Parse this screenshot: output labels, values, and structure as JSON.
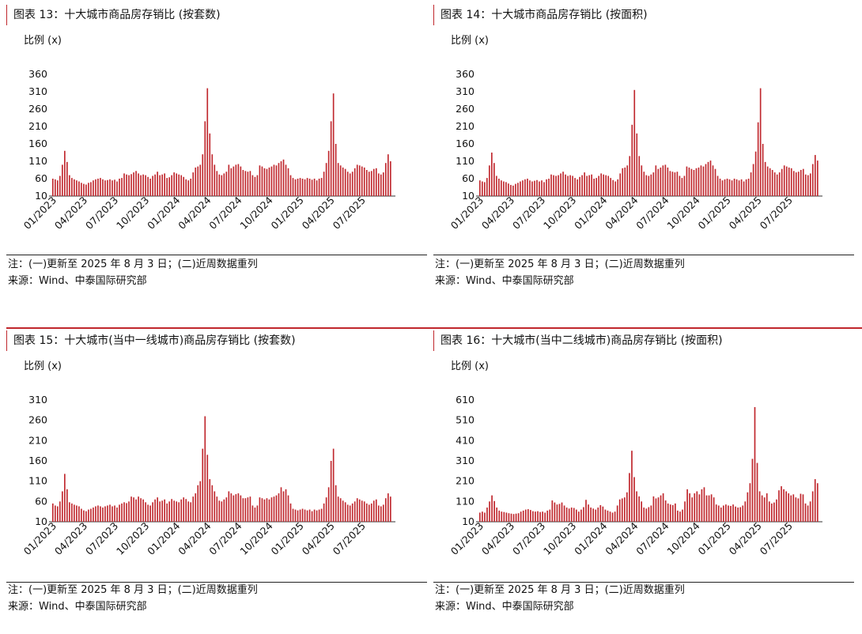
{
  "colors": {
    "bar": "#c0272d",
    "accent": "#c0272d",
    "axis": "#333333"
  },
  "panels": [
    {
      "title": "图表 13：十大城市商品房存销比 (按套数)",
      "ylabel": "比例 (x)",
      "note1": "注：(一)更新至 2025 年 8 月 3 日；(二)近周数据重列",
      "note2": "来源：Wind、中泰国际研究部"
    },
    {
      "title": "图表 14：十大城市商品房存销比 (按面积)",
      "ylabel": "比例 (x)",
      "note1": "注：(一)更新至 2025 年 8 月 3 日；(二)近周数据重列",
      "note2": "来源：Wind、中泰国际研究部"
    },
    {
      "title": "图表 15：十大城市(当中一线城市)商品房存销比 (按套数)",
      "ylabel": "比例 (x)",
      "note1": "注：(一)更新至 2025 年 8 月 3 日；(二)近周数据重列",
      "note2": "来源：Wind、中泰国际研究部"
    },
    {
      "title": "图表 16：十大城市(当中二线城市)商品房存销比 (按面积)",
      "ylabel": "比例 (x)",
      "note1": "注：(一)更新至 2025 年 8 月 3 日；(二)近周数据重列",
      "note2": "来源：Wind、中泰国际研究部"
    }
  ],
  "chart_data": [
    {
      "type": "bar",
      "ylim": [
        10,
        360
      ],
      "yticks": [
        10,
        60,
        110,
        160,
        210,
        260,
        310,
        360
      ],
      "xticks": [
        "01/2023",
        "04/2023",
        "07/2023",
        "10/2023",
        "01/2024",
        "04/2024",
        "07/2024",
        "10/2024",
        "01/2025",
        "04/2025",
        "07/2025"
      ],
      "values": [
        60,
        58,
        55,
        68,
        100,
        140,
        108,
        70,
        62,
        58,
        55,
        52,
        48,
        45,
        43,
        48,
        50,
        55,
        58,
        60,
        62,
        58,
        55,
        56,
        58,
        55,
        57,
        52,
        60,
        62,
        75,
        72,
        70,
        73,
        78,
        82,
        75,
        70,
        72,
        70,
        65,
        60,
        68,
        72,
        80,
        70,
        72,
        75,
        62,
        64,
        70,
        78,
        75,
        72,
        70,
        65,
        58,
        55,
        60,
        78,
        92,
        95,
        100,
        130,
        225,
        320,
        190,
        130,
        100,
        82,
        72,
        70,
        75,
        80,
        100,
        90,
        95,
        100,
        102,
        95,
        85,
        82,
        80,
        82,
        70,
        65,
        70,
        98,
        95,
        90,
        88,
        92,
        95,
        100,
        98,
        105,
        110,
        115,
        100,
        90,
        70,
        62,
        58,
        60,
        62,
        60,
        58,
        62,
        60,
        57,
        60,
        55,
        60,
        62,
        80,
        105,
        140,
        225,
        305,
        160,
        105,
        98,
        92,
        88,
        80,
        75,
        80,
        90,
        100,
        98,
        95,
        92,
        85,
        80,
        82,
        88,
        90,
        75,
        72,
        78,
        105,
        130,
        110
      ]
    },
    {
      "type": "bar",
      "ylim": [
        10,
        360
      ],
      "yticks": [
        10,
        60,
        110,
        160,
        210,
        260,
        310,
        360
      ],
      "xticks": [
        "01/2023",
        "04/2023",
        "07/2023",
        "10/2023",
        "01/2024",
        "04/2024",
        "07/2024",
        "10/2024",
        "01/2025",
        "04/2025",
        "07/2025"
      ],
      "values": [
        55,
        52,
        50,
        62,
        98,
        135,
        105,
        68,
        60,
        55,
        52,
        50,
        46,
        42,
        40,
        45,
        48,
        52,
        55,
        58,
        60,
        55,
        52,
        54,
        56,
        52,
        55,
        50,
        58,
        60,
        72,
        70,
        68,
        70,
        75,
        80,
        72,
        68,
        70,
        68,
        62,
        58,
        65,
        70,
        78,
        68,
        70,
        72,
        60,
        62,
        68,
        75,
        72,
        70,
        68,
        62,
        56,
        52,
        58,
        75,
        90,
        92,
        98,
        125,
        215,
        315,
        190,
        125,
        98,
        80,
        70,
        68,
        72,
        78,
        98,
        88,
        92,
        98,
        100,
        92,
        82,
        80,
        78,
        80,
        68,
        62,
        68,
        95,
        92,
        88,
        85,
        90,
        92,
        98,
        95,
        102,
        108,
        112,
        98,
        88,
        68,
        60,
        55,
        58,
        60,
        58,
        55,
        60,
        58,
        55,
        58,
        52,
        58,
        60,
        78,
        102,
        138,
        222,
        320,
        160,
        108,
        95,
        90,
        85,
        78,
        72,
        78,
        88,
        98,
        95,
        92,
        90,
        82,
        78,
        80,
        85,
        88,
        72,
        70,
        75,
        102,
        128,
        112
      ]
    },
    {
      "type": "bar",
      "ylim": [
        10,
        310
      ],
      "yticks": [
        10,
        60,
        110,
        160,
        210,
        260,
        310
      ],
      "xticks": [
        "01/2023",
        "04/2023",
        "07/2023",
        "10/2023",
        "01/2024",
        "04/2024",
        "07/2024",
        "10/2024",
        "01/2025",
        "04/2025",
        "07/2025"
      ],
      "values": [
        55,
        50,
        48,
        60,
        85,
        128,
        90,
        58,
        55,
        52,
        50,
        48,
        42,
        38,
        36,
        40,
        42,
        45,
        48,
        50,
        48,
        45,
        48,
        50,
        52,
        48,
        50,
        45,
        52,
        55,
        58,
        56,
        60,
        72,
        70,
        65,
        72,
        68,
        65,
        58,
        52,
        50,
        58,
        65,
        70,
        60,
        62,
        65,
        55,
        60,
        66,
        62,
        60,
        58,
        65,
        70,
        66,
        60,
        58,
        72,
        80,
        100,
        110,
        190,
        270,
        175,
        115,
        100,
        85,
        72,
        62,
        60,
        65,
        70,
        85,
        80,
        75,
        78,
        80,
        75,
        68,
        68,
        70,
        72,
        50,
        45,
        50,
        70,
        68,
        65,
        68,
        65,
        70,
        72,
        75,
        80,
        95,
        85,
        90,
        75,
        55,
        42,
        40,
        38,
        40,
        42,
        40,
        38,
        40,
        36,
        40,
        38,
        40,
        42,
        55,
        70,
        95,
        160,
        190,
        100,
        72,
        68,
        62,
        58,
        52,
        50,
        55,
        60,
        68,
        65,
        62,
        60,
        55,
        52,
        55,
        62,
        65,
        50,
        48,
        52,
        68,
        80,
        72
      ]
    },
    {
      "type": "bar",
      "ylim": [
        10,
        610
      ],
      "yticks": [
        10,
        110,
        210,
        310,
        410,
        510,
        610
      ],
      "xticks": [
        "01/2023",
        "04/2023",
        "07/2023",
        "10/2023",
        "01/2024",
        "04/2024",
        "07/2024",
        "10/2024",
        "01/2025",
        "04/2025",
        "07/2025"
      ],
      "values": [
        55,
        60,
        55,
        80,
        110,
        140,
        112,
        80,
        65,
        60,
        58,
        55,
        52,
        50,
        48,
        50,
        52,
        60,
        65,
        70,
        72,
        68,
        62,
        60,
        62,
        58,
        60,
        55,
        65,
        70,
        115,
        105,
        95,
        98,
        105,
        90,
        80,
        75,
        80,
        78,
        70,
        60,
        70,
        82,
        118,
        95,
        80,
        75,
        70,
        80,
        92,
        85,
        70,
        65,
        60,
        55,
        60,
        90,
        120,
        125,
        130,
        155,
        250,
        360,
        230,
        160,
        135,
        110,
        80,
        75,
        82,
        90,
        135,
        125,
        130,
        140,
        150,
        115,
        100,
        95,
        92,
        100,
        65,
        60,
        70,
        110,
        170,
        150,
        130,
        150,
        160,
        145,
        170,
        180,
        140,
        140,
        145,
        130,
        95,
        90,
        80,
        90,
        95,
        90,
        88,
        95,
        85,
        80,
        82,
        90,
        110,
        155,
        200,
        320,
        575,
        300,
        160,
        140,
        130,
        150,
        110,
        100,
        105,
        120,
        165,
        185,
        170,
        160,
        150,
        140,
        145,
        130,
        125,
        148,
        145,
        100,
        90,
        110,
        160,
        220,
        200
      ]
    }
  ]
}
